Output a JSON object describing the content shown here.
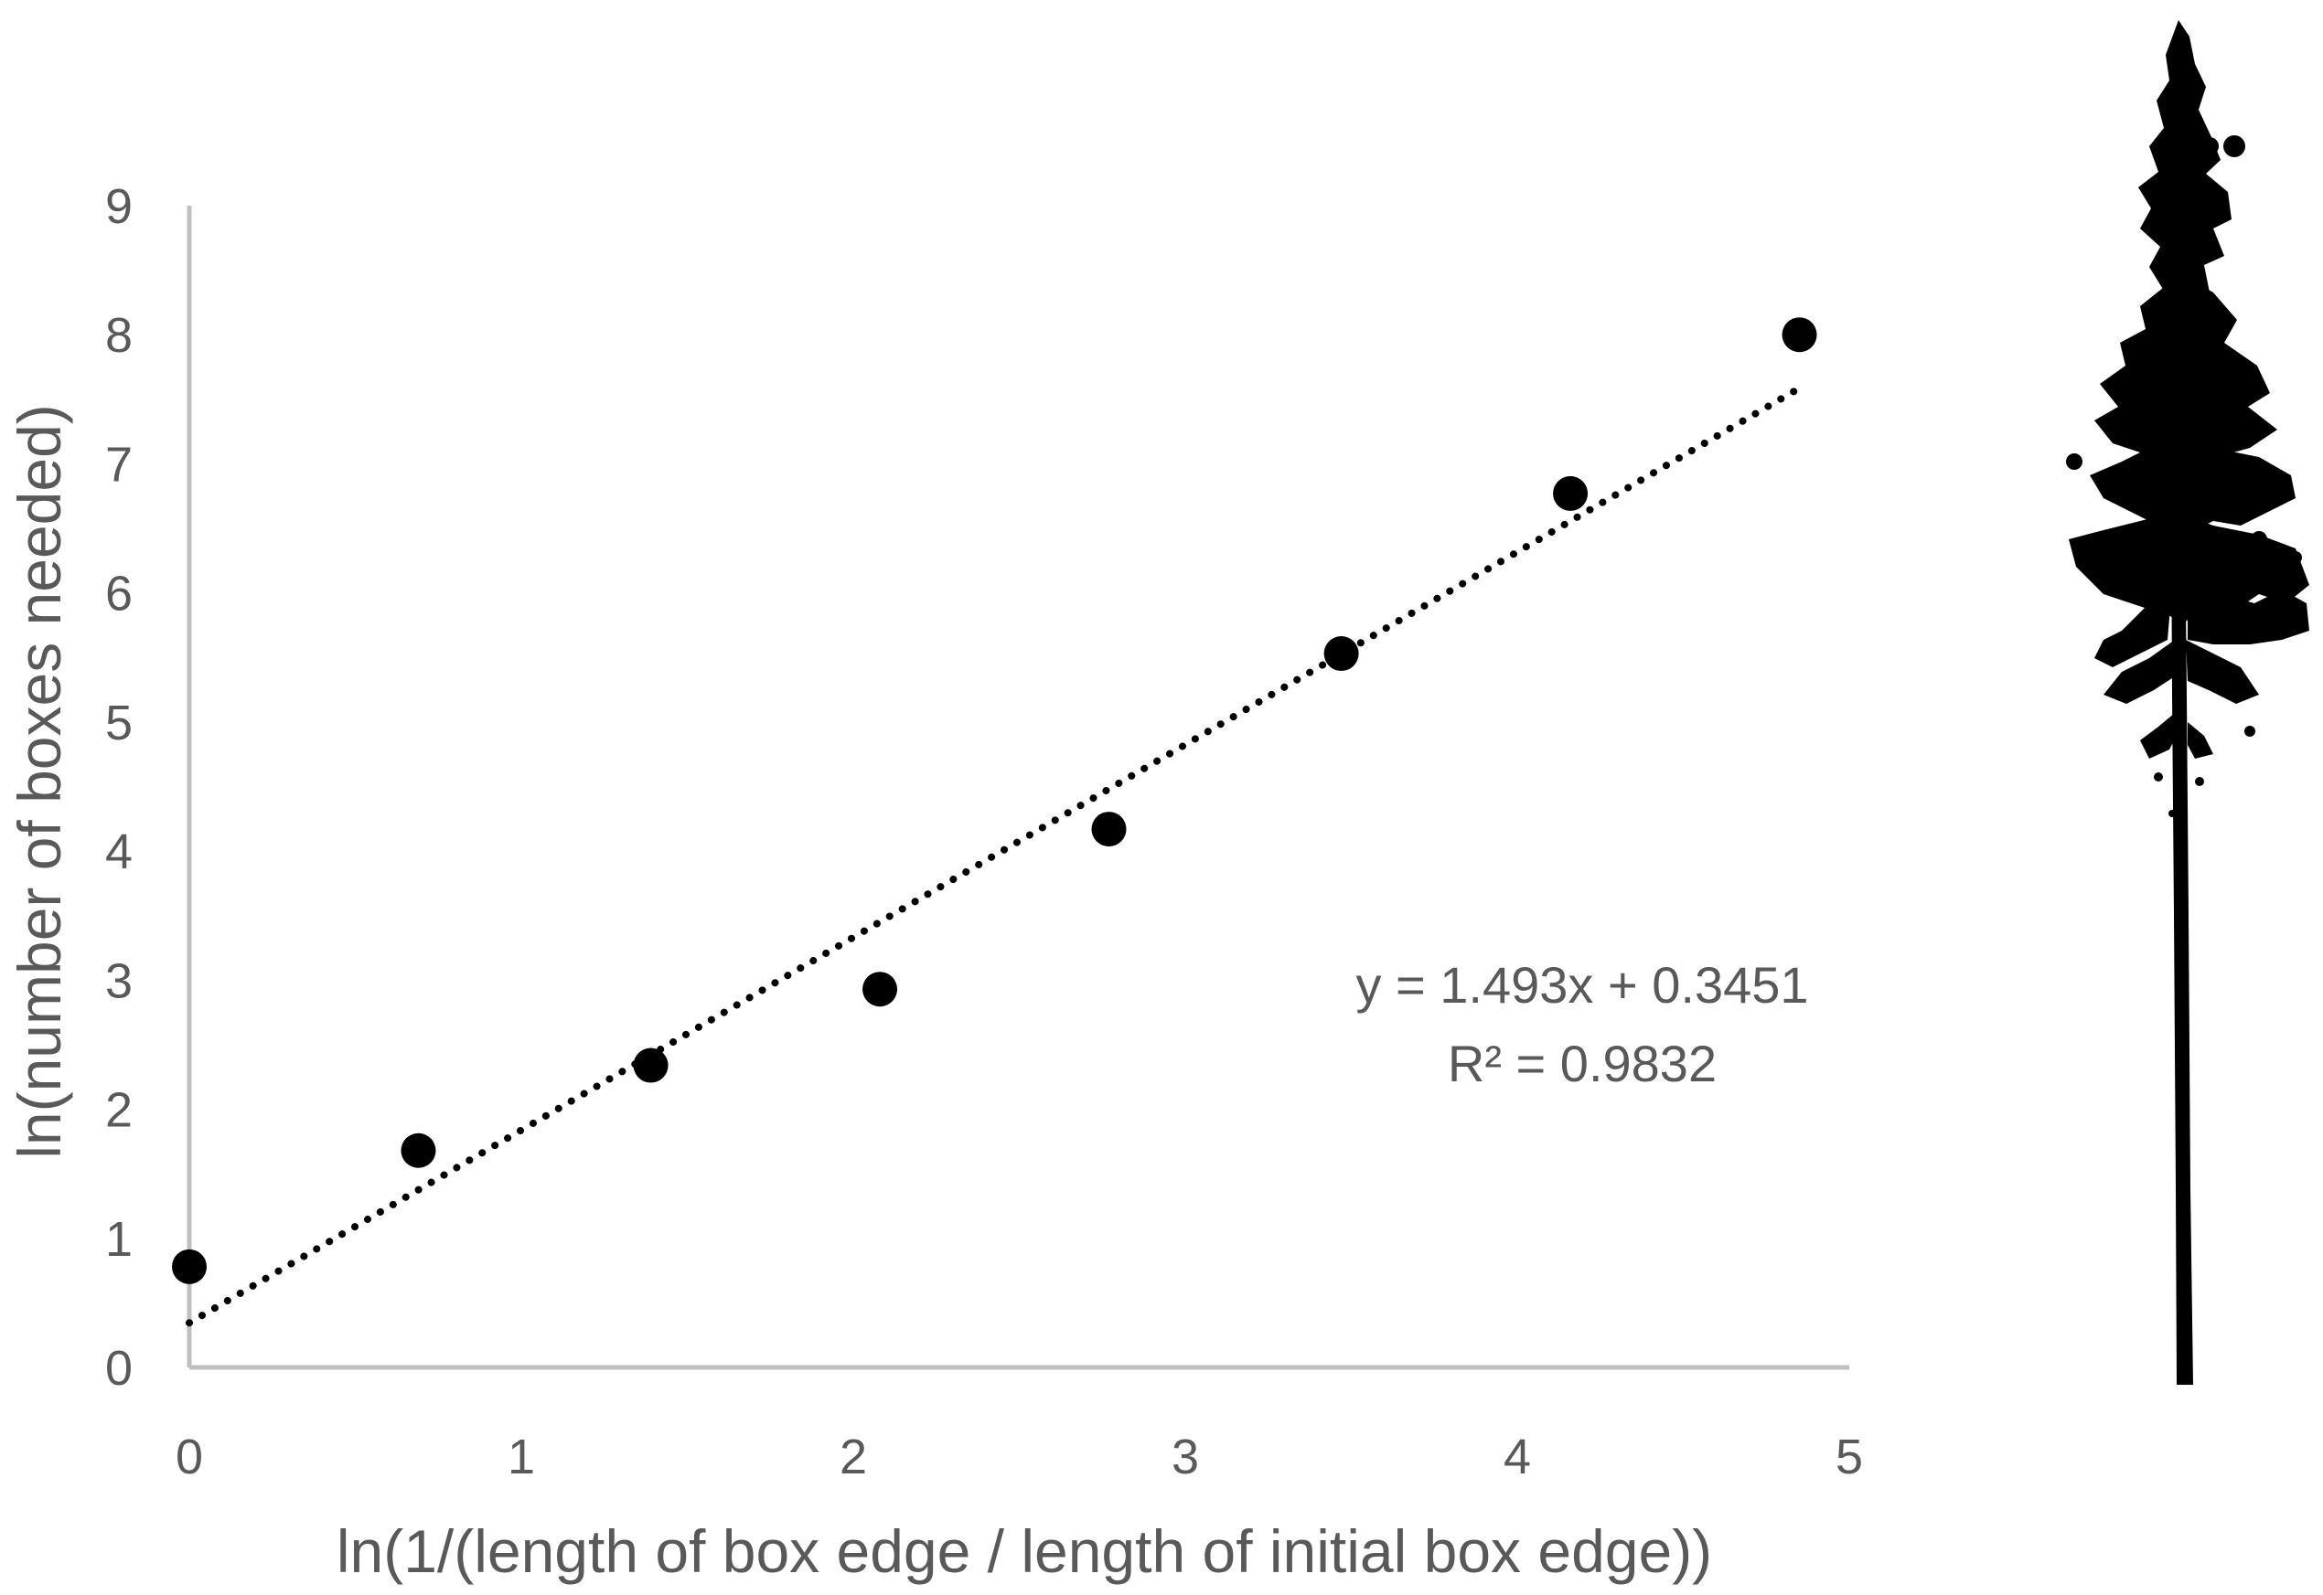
{
  "chart_data": {
    "type": "scatter",
    "title": "",
    "xlabel": "ln(1/(length of box edge / length of initial box edge))",
    "ylabel": "ln(number of boxes needed)",
    "xlim": [
      0,
      5
    ],
    "ylim": [
      0,
      9
    ],
    "xticks": [
      "0",
      "1",
      "2",
      "3",
      "4",
      "5"
    ],
    "yticks": [
      "0",
      "1",
      "2",
      "3",
      "4",
      "5",
      "6",
      "7",
      "8",
      "9"
    ],
    "grid": false,
    "legend": "none",
    "series": [
      {
        "x": [
          0.0,
          0.69,
          1.39,
          2.08,
          2.77,
          3.47,
          4.16,
          4.85
        ],
        "y": [
          0.78,
          1.68,
          2.34,
          2.93,
          4.17,
          5.53,
          6.77,
          8.0
        ]
      }
    ],
    "trendline": {
      "style": "dotted",
      "slope": 1.493,
      "intercept": 0.3451,
      "x_range": [
        0.0,
        4.85
      ]
    },
    "annotations": {
      "equation": "y = 1.493x + 0.3451",
      "r_squared": "R² = 0.9832"
    },
    "colors": {
      "points": "#000000",
      "axis": "#bfbfbf",
      "text": "#595959"
    }
  },
  "illustration": {
    "icon": "tree-silhouette-icon",
    "color": "#000000"
  }
}
